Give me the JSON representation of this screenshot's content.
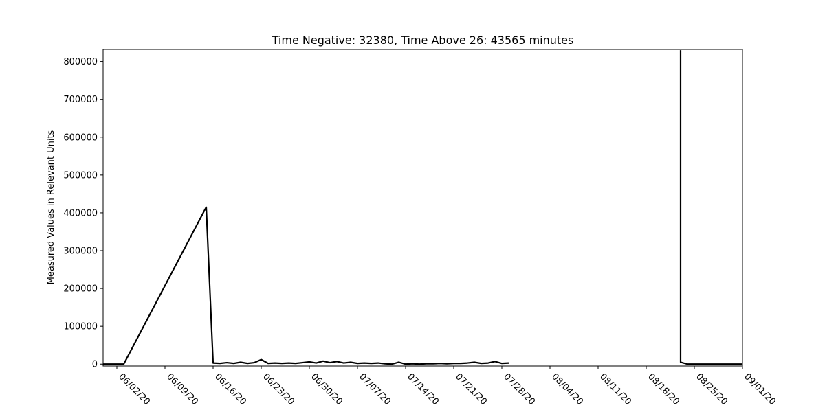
{
  "chart_data": {
    "type": "line",
    "title": "Time Negative: 32380, Time Above 26: 43565 minutes",
    "xlabel": "",
    "ylabel": "Measured Values in Relevant Units",
    "xlim": [
      "2020-05-31",
      "2020-09-01"
    ],
    "ylim": [
      -5000,
      832000
    ],
    "grid": false,
    "x_ticks": [
      "06/02/20",
      "06/09/20",
      "06/16/20",
      "06/23/20",
      "06/30/20",
      "07/07/20",
      "07/14/20",
      "07/21/20",
      "07/28/20",
      "08/04/20",
      "08/11/20",
      "08/18/20",
      "08/25/20",
      "09/01/20"
    ],
    "y_ticks": [
      "0",
      "100000",
      "200000",
      "300000",
      "400000",
      "500000",
      "600000",
      "700000",
      "800000"
    ],
    "x_tick_dates": [
      "2020-06-02",
      "2020-06-09",
      "2020-06-16",
      "2020-06-23",
      "2020-06-30",
      "2020-07-07",
      "2020-07-14",
      "2020-07-21",
      "2020-07-28",
      "2020-08-04",
      "2020-08-11",
      "2020-08-18",
      "2020-08-25",
      "2020-09-01"
    ],
    "y_tick_values": [
      0,
      100000,
      200000,
      300000,
      400000,
      500000,
      600000,
      700000,
      800000
    ],
    "series": [
      {
        "color": "#000000",
        "points": [
          [
            "2020-05-31",
            0
          ],
          [
            "2020-06-01",
            0
          ],
          [
            "2020-06-02",
            0
          ],
          [
            "2020-06-03",
            0
          ],
          [
            "2020-06-15",
            415000
          ],
          [
            "2020-06-16",
            3000
          ],
          [
            "2020-06-17",
            2000
          ],
          [
            "2020-06-18",
            4000
          ],
          [
            "2020-06-19",
            2000
          ],
          [
            "2020-06-20",
            5000
          ],
          [
            "2020-06-21",
            2000
          ],
          [
            "2020-06-22",
            4000
          ],
          [
            "2020-06-23",
            12000
          ],
          [
            "2020-06-24",
            2000
          ],
          [
            "2020-06-25",
            3000
          ],
          [
            "2020-06-26",
            2000
          ],
          [
            "2020-06-27",
            3000
          ],
          [
            "2020-06-28",
            2000
          ],
          [
            "2020-06-29",
            4000
          ],
          [
            "2020-06-30",
            6000
          ],
          [
            "2020-07-01",
            3000
          ],
          [
            "2020-07-02",
            8000
          ],
          [
            "2020-07-03",
            4000
          ],
          [
            "2020-07-04",
            7000
          ],
          [
            "2020-07-05",
            3000
          ],
          [
            "2020-07-06",
            5000
          ],
          [
            "2020-07-07",
            2000
          ],
          [
            "2020-07-08",
            3000
          ],
          [
            "2020-07-09",
            2000
          ],
          [
            "2020-07-10",
            3000
          ],
          [
            "2020-07-11",
            1000
          ],
          [
            "2020-07-12",
            0
          ],
          [
            "2020-07-13",
            5000
          ],
          [
            "2020-07-14",
            0
          ],
          [
            "2020-07-15",
            1000
          ],
          [
            "2020-07-16",
            0
          ],
          [
            "2020-07-17",
            1000
          ],
          [
            "2020-07-18",
            1000
          ],
          [
            "2020-07-19",
            2000
          ],
          [
            "2020-07-20",
            1000
          ],
          [
            "2020-07-21",
            2000
          ],
          [
            "2020-07-22",
            2000
          ],
          [
            "2020-07-23",
            3000
          ],
          [
            "2020-07-24",
            5000
          ],
          [
            "2020-07-25",
            2000
          ],
          [
            "2020-07-26",
            3000
          ],
          [
            "2020-07-27",
            7000
          ],
          [
            "2020-07-28",
            2000
          ],
          [
            "2020-07-29",
            3000
          ]
        ]
      },
      {
        "color": "#000000",
        "points": [
          [
            "2020-08-23",
            830000
          ],
          [
            "2020-08-23",
            5000
          ],
          [
            "2020-08-24",
            0
          ],
          [
            "2020-08-25",
            0
          ],
          [
            "2020-08-26",
            0
          ],
          [
            "2020-08-27",
            0
          ],
          [
            "2020-08-28",
            0
          ],
          [
            "2020-08-29",
            0
          ],
          [
            "2020-08-30",
            0
          ],
          [
            "2020-08-31",
            0
          ],
          [
            "2020-09-01",
            0
          ]
        ]
      }
    ]
  }
}
